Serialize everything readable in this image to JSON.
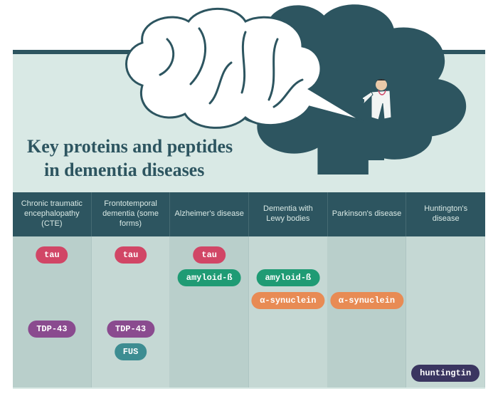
{
  "title_line1": "Key proteins and peptides",
  "title_line2": "in dementia diseases",
  "colors": {
    "frame": "#2d5560",
    "panel": "#d9e9e5",
    "col_odd": "#b9cfcb",
    "col_even": "#c5d8d4",
    "tau": "#d14666",
    "amyloid": "#1f9b74",
    "synuclein": "#e88b54",
    "tdp43": "#8a4b8f",
    "fus": "#3d8d92",
    "huntingtin": "#3a3560",
    "cloud": "#2d5560",
    "brain_outline": "#2d5560",
    "brain_fill": "#ffffff"
  },
  "rows": {
    "tau": 14,
    "amyloid": 46,
    "synuclein": 78,
    "tdp43": 118,
    "fus": 150,
    "huntingtin": 180
  },
  "columns": [
    {
      "header": "Chronic traumatic encephalopathy (CTE)",
      "pills": [
        {
          "label": "tau",
          "color": "tau",
          "row": "tau"
        },
        {
          "label": "TDP-43",
          "color": "tdp43",
          "row": "tdp43"
        }
      ]
    },
    {
      "header": "Frontotemporal dementia (some forms)",
      "pills": [
        {
          "label": "tau",
          "color": "tau",
          "row": "tau"
        },
        {
          "label": "TDP-43",
          "color": "tdp43",
          "row": "tdp43"
        },
        {
          "label": "FUS",
          "color": "fus",
          "row": "fus"
        }
      ]
    },
    {
      "header": "Alzheimer's disease",
      "pills": [
        {
          "label": "tau",
          "color": "tau",
          "row": "tau"
        },
        {
          "label": "amyloid-ß",
          "color": "amyloid",
          "row": "amyloid"
        }
      ]
    },
    {
      "header": "Dementia with Lewy bodies",
      "pills": [
        {
          "label": "amyloid-ß",
          "color": "amyloid",
          "row": "amyloid"
        },
        {
          "label": "α-synuclein",
          "color": "synuclein",
          "row": "synuclein"
        }
      ]
    },
    {
      "header": "Parkinson's disease",
      "pills": [
        {
          "label": "α-synuclein",
          "color": "synuclein",
          "row": "synuclein"
        }
      ]
    },
    {
      "header": "Huntington's disease",
      "pills": [
        {
          "label": "huntingtin",
          "color": "huntingtin",
          "row": "huntingtin"
        }
      ]
    }
  ]
}
